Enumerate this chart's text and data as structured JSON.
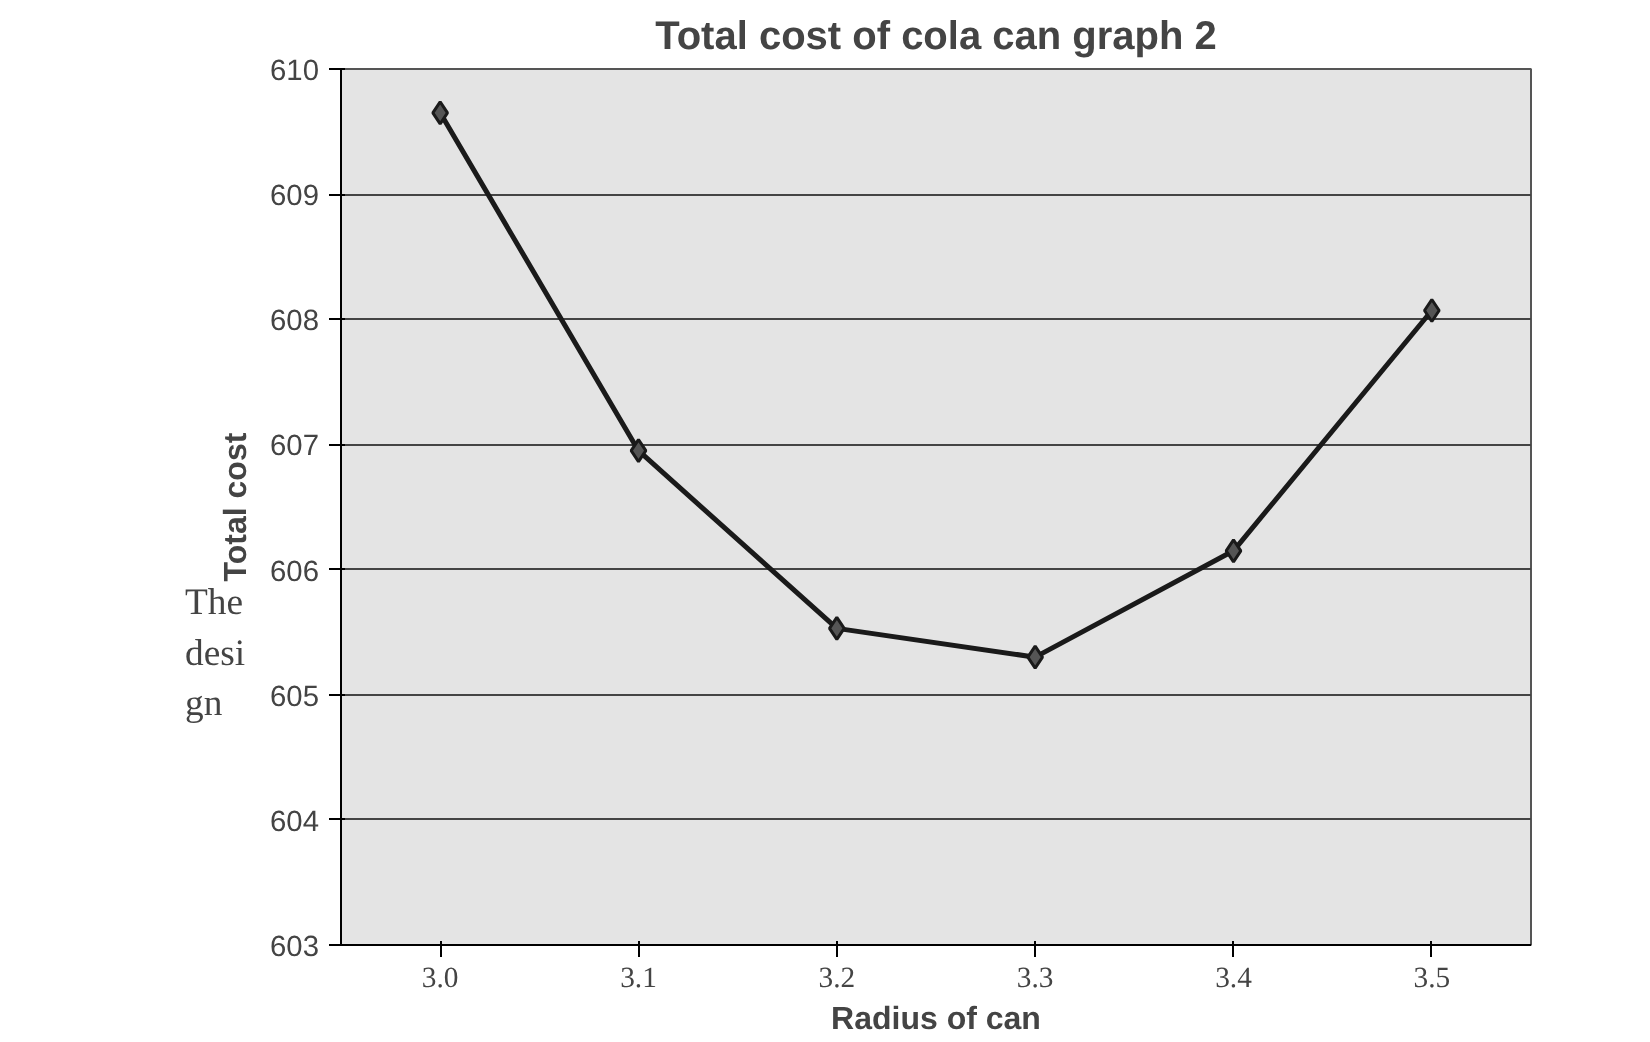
{
  "chart_data": {
    "type": "line",
    "title": "Total cost of cola can graph 2",
    "xlabel": "Radius of can",
    "ylabel": "Total cost",
    "categories": [
      "3.0",
      "3.1",
      "3.2",
      "3.3",
      "3.4",
      "3.5"
    ],
    "series": [
      {
        "color": "#1a1a1a",
        "values": [
          609.65,
          606.95,
          605.53,
          605.3,
          606.15,
          608.07
        ]
      }
    ],
    "ylim": [
      603,
      610
    ],
    "yticks": [
      603,
      604,
      605,
      606,
      607,
      608,
      609,
      610
    ],
    "grid": "y",
    "marker": "diamond",
    "line_style": "solid",
    "annotations": [
      "The\ndesi\ngn"
    ]
  }
}
